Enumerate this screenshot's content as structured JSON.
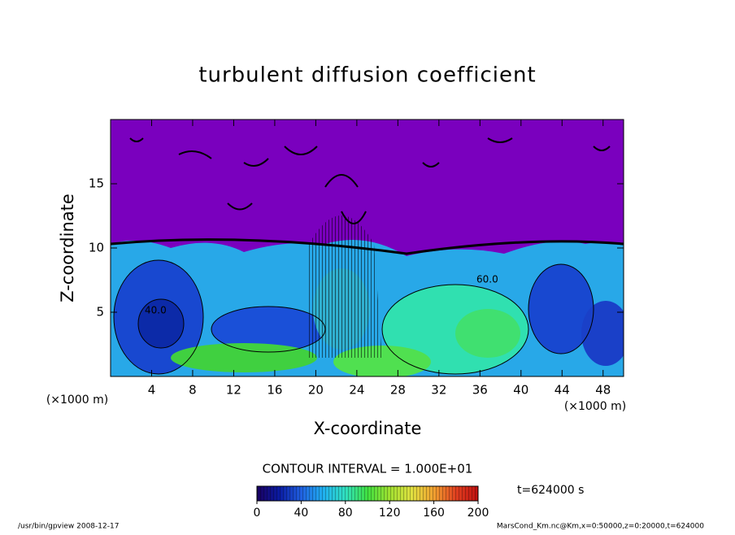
{
  "chart_data": {
    "type": "contour",
    "title": "turbulent diffusion coefficient",
    "x_label": "X-coordinate",
    "y_label": "Z-coordinate",
    "x_unit_left": "(×1000 m)",
    "x_unit_right": "(×1000 m)",
    "xlim": [
      0,
      50
    ],
    "xticks": [
      4,
      8,
      12,
      16,
      20,
      24,
      28,
      32,
      36,
      40,
      44,
      48
    ],
    "ylim": [
      0,
      20
    ],
    "yticks": [
      5,
      10,
      15
    ],
    "contour_interval": "CONTOUR INTERVAL = 1.000E+01",
    "contour_labels": [
      "40.0",
      "60.0"
    ],
    "time_label": "t=624000 s",
    "clim": [
      0,
      200
    ],
    "cticks": [
      0,
      40,
      80,
      120,
      160,
      200
    ],
    "colormap": [
      "#1a0060",
      "#0a1aa0",
      "#2060e0",
      "#20b0f0",
      "#30e0c0",
      "#40e040",
      "#a0e030",
      "#e0e040",
      "#f0a030",
      "#e04020",
      "#c01010"
    ],
    "footer_left": "/usr/bin/gpview   2008-12-17",
    "footer_right": "MarsCond_Km.nc@Km,x=0:50000,z=0:20000,t=624000"
  }
}
